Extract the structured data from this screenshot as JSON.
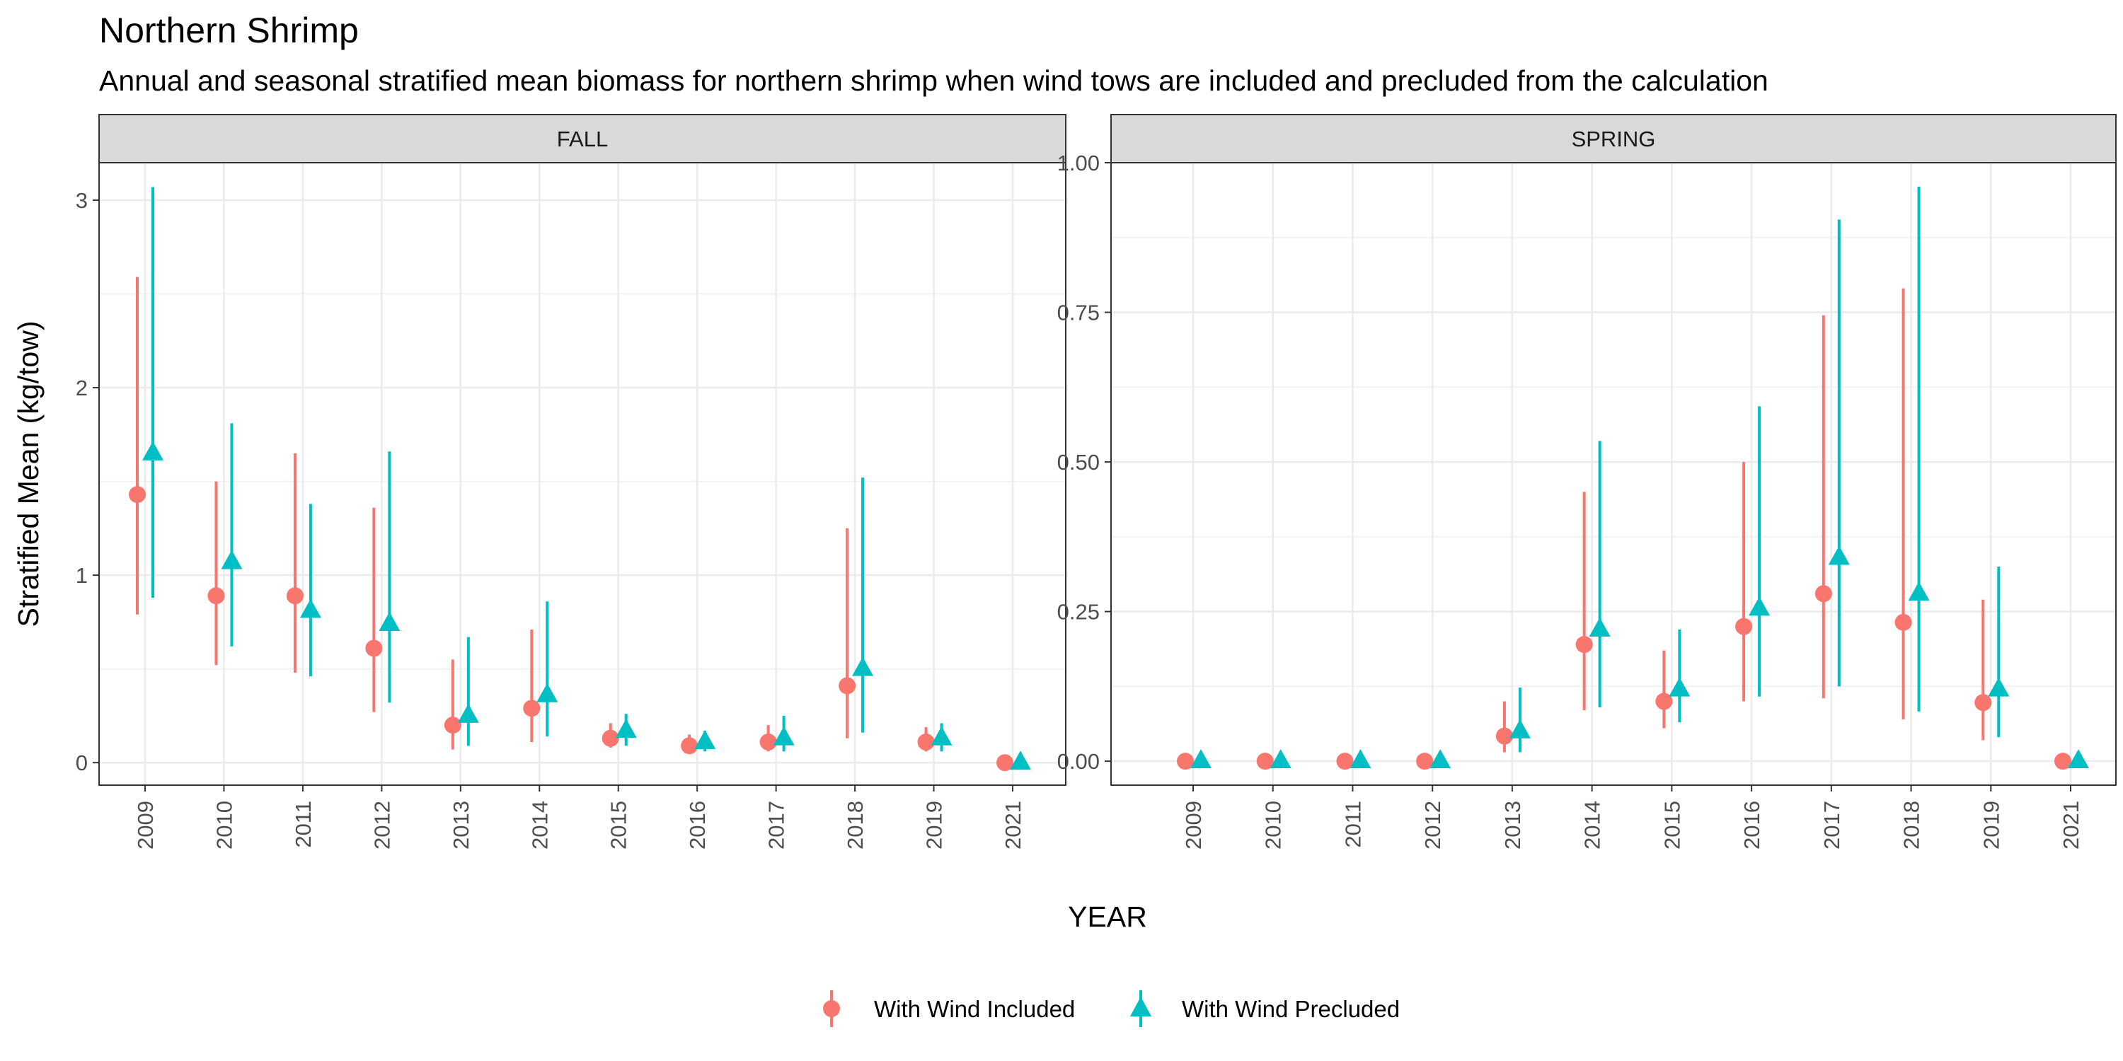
{
  "title": "Northern Shrimp",
  "subtitle": "Annual and seasonal stratified mean biomass for northern shrimp when wind tows are included and precluded from the calculation",
  "colors": {
    "included": "#F8766D",
    "precluded": "#00BFC4"
  },
  "chart_data": {
    "type": "scatter",
    "xlabel": "YEAR",
    "ylabel": "Stratified Mean (kg/tow)",
    "categories": [
      "2009",
      "2010",
      "2011",
      "2012",
      "2013",
      "2014",
      "2015",
      "2016",
      "2017",
      "2018",
      "2019",
      "2021"
    ],
    "legend": {
      "position": "bottom",
      "entries": [
        {
          "label": "With Wind Included",
          "shape": "circle",
          "color": "#F8766D"
        },
        {
          "label": "With Wind Precluded",
          "shape": "triangle",
          "color": "#00BFC4"
        }
      ]
    },
    "panels": [
      {
        "name": "FALL",
        "ylim": [
          -0.12,
          3.2
        ],
        "yticks": [
          0,
          1,
          2,
          3
        ],
        "ytick_labels": [
          "0",
          "1",
          "2",
          "3"
        ],
        "series": [
          {
            "name": "With Wind Included",
            "values": [
              1.43,
              0.89,
              0.89,
              0.61,
              0.2,
              0.29,
              0.13,
              0.09,
              0.11,
              0.41,
              0.11,
              0.0
            ],
            "lower": [
              0.79,
              0.52,
              0.48,
              0.27,
              0.07,
              0.11,
              0.08,
              0.05,
              0.06,
              0.13,
              0.06,
              0.0
            ],
            "upper": [
              2.59,
              1.5,
              1.65,
              1.36,
              0.55,
              0.71,
              0.21,
              0.15,
              0.2,
              1.25,
              0.19,
              0.0
            ]
          },
          {
            "name": "With Wind Precluded",
            "values": [
              1.65,
              1.07,
              0.81,
              0.74,
              0.25,
              0.36,
              0.17,
              0.11,
              0.13,
              0.5,
              0.13,
              0.0
            ],
            "lower": [
              0.88,
              0.62,
              0.46,
              0.32,
              0.09,
              0.14,
              0.09,
              0.06,
              0.06,
              0.16,
              0.06,
              0.0
            ],
            "upper": [
              3.07,
              1.81,
              1.38,
              1.66,
              0.67,
              0.86,
              0.26,
              0.17,
              0.25,
              1.52,
              0.21,
              0.0
            ]
          }
        ]
      },
      {
        "name": "SPRING",
        "ylim": [
          -0.04,
          1.0
        ],
        "yticks": [
          0,
          0.25,
          0.5,
          0.75,
          1.0
        ],
        "ytick_labels": [
          "0.00",
          "0.25",
          "0.50",
          "0.75",
          "1.00"
        ],
        "series": [
          {
            "name": "With Wind Included",
            "values": [
              0.0,
              0.0,
              0.0,
              0.0,
              0.042,
              0.195,
              0.1,
              0.225,
              0.28,
              0.232,
              0.098,
              0.0
            ],
            "lower": [
              0.0,
              0.0,
              0.0,
              0.0,
              0.015,
              0.085,
              0.055,
              0.1,
              0.105,
              0.07,
              0.035,
              0.0
            ],
            "upper": [
              0.0,
              0.0,
              0.0,
              0.0,
              0.1,
              0.45,
              0.185,
              0.5,
              0.745,
              0.79,
              0.27,
              0.0
            ]
          },
          {
            "name": "With Wind Precluded",
            "values": [
              0.0,
              0.0,
              0.0,
              0.0,
              0.05,
              0.22,
              0.12,
              0.255,
              0.34,
              0.28,
              0.12,
              0.0
            ],
            "lower": [
              0.0,
              0.0,
              0.0,
              0.0,
              0.015,
              0.09,
              0.065,
              0.108,
              0.125,
              0.083,
              0.04,
              0.0
            ],
            "upper": [
              0.0,
              0.0,
              0.0,
              0.0,
              0.123,
              0.535,
              0.22,
              0.593,
              0.905,
              0.96,
              0.325,
              0.0
            ]
          }
        ]
      }
    ]
  }
}
